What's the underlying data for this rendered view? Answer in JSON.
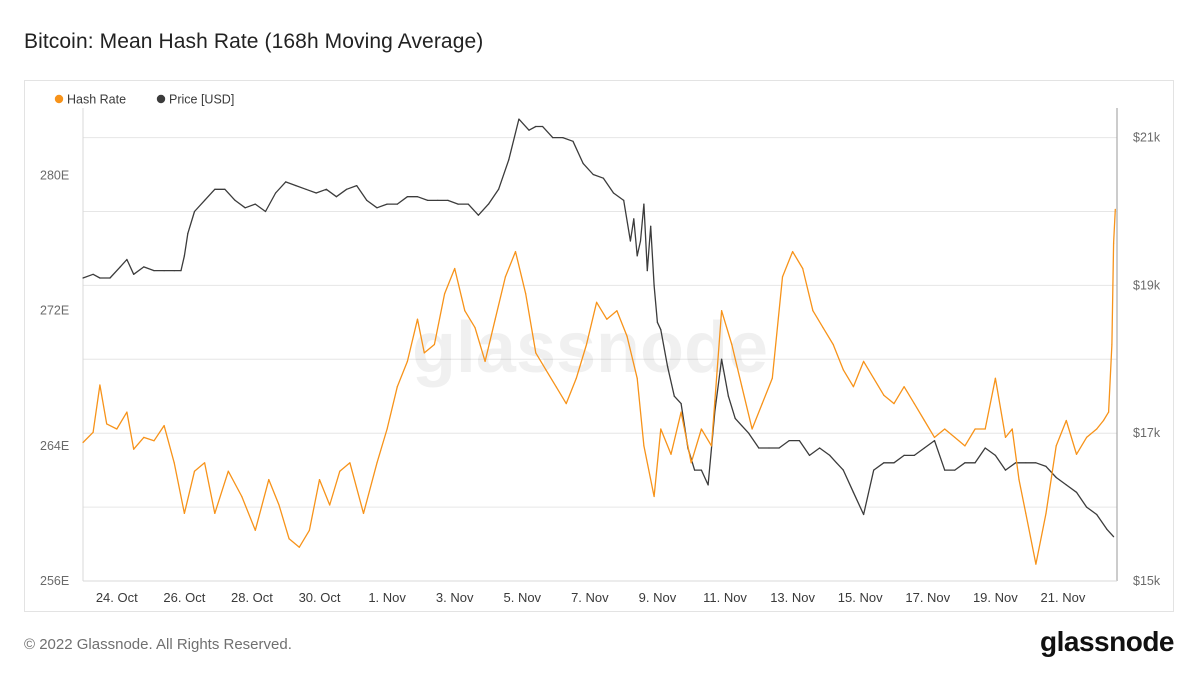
{
  "title": "Bitcoin: Mean Hash Rate (168h Moving Average)",
  "footer": {
    "copyright": "© 2022 Glassnode. All Rights Reserved.",
    "brand": "glassnode"
  },
  "colors": {
    "hash_rate": "#F7931A",
    "price": "#3c3c3c",
    "grid": "#e6e6e6",
    "watermark": "#000000"
  },
  "chart_data": {
    "type": "line",
    "title": "Bitcoin: Mean Hash Rate (168h Moving Average)",
    "watermark": "glassnode",
    "legend": {
      "placement": "top-left",
      "entries": [
        {
          "name": "Hash Rate",
          "color": "#F7931A"
        },
        {
          "name": "Price [USD]",
          "color": "#3c3c3c"
        }
      ]
    },
    "x_domain": [
      22.5,
      53.1
    ],
    "x_ticks": [
      {
        "day": 23.5,
        "label": "24. Oct"
      },
      {
        "day": 25.5,
        "label": "26. Oct"
      },
      {
        "day": 27.5,
        "label": "28. Oct"
      },
      {
        "day": 29.5,
        "label": "30. Oct"
      },
      {
        "day": 31.5,
        "label": "1. Nov"
      },
      {
        "day": 33.5,
        "label": "3. Nov"
      },
      {
        "day": 35.5,
        "label": "5. Nov"
      },
      {
        "day": 37.5,
        "label": "7. Nov"
      },
      {
        "day": 39.5,
        "label": "9. Nov"
      },
      {
        "day": 41.5,
        "label": "11. Nov"
      },
      {
        "day": 43.5,
        "label": "13. Nov"
      },
      {
        "day": 45.5,
        "label": "15. Nov"
      },
      {
        "day": 47.5,
        "label": "17. Nov"
      },
      {
        "day": 49.5,
        "label": "19. Nov"
      },
      {
        "day": 51.5,
        "label": "21. Nov"
      }
    ],
    "y_left": {
      "label": "Hash Rate",
      "range": [
        256,
        284
      ],
      "ticks": [
        {
          "value": 256,
          "label": "256E"
        },
        {
          "value": 264,
          "label": "264E"
        },
        {
          "value": 272,
          "label": "272E"
        },
        {
          "value": 280,
          "label": "280E"
        }
      ]
    },
    "y_right": {
      "label": "Price [USD]",
      "range": [
        15000,
        21400
      ],
      "ticks": [
        {
          "value": 15000,
          "label": "$15k"
        },
        {
          "value": 17000,
          "label": "$17k"
        },
        {
          "value": 19000,
          "label": "$19k"
        },
        {
          "value": 21000,
          "label": "$21k"
        }
      ]
    },
    "series": [
      {
        "name": "Hash Rate",
        "axis": "left",
        "color": "#F7931A",
        "x": [
          22.5,
          22.8,
          23.0,
          23.2,
          23.5,
          23.8,
          24.0,
          24.3,
          24.6,
          24.9,
          25.2,
          25.5,
          25.8,
          26.1,
          26.4,
          26.8,
          27.2,
          27.6,
          28.0,
          28.3,
          28.6,
          28.9,
          29.2,
          29.5,
          29.8,
          30.1,
          30.4,
          30.8,
          31.2,
          31.5,
          31.8,
          32.1,
          32.4,
          32.6,
          32.9,
          33.2,
          33.5,
          33.8,
          34.1,
          34.4,
          34.7,
          35.0,
          35.3,
          35.6,
          35.9,
          36.2,
          36.5,
          36.8,
          37.1,
          37.4,
          37.7,
          38.0,
          38.3,
          38.6,
          38.9,
          39.1,
          39.4,
          39.6,
          39.9,
          40.2,
          40.5,
          40.8,
          41.1,
          41.4,
          41.7,
          42.0,
          42.3,
          42.6,
          42.9,
          43.2,
          43.5,
          43.8,
          44.1,
          44.4,
          44.7,
          45.0,
          45.3,
          45.6,
          45.9,
          46.2,
          46.5,
          46.8,
          47.1,
          47.4,
          47.7,
          48.0,
          48.3,
          48.6,
          48.9,
          49.2,
          49.5,
          49.8,
          50.0,
          50.2,
          50.4,
          50.7,
          51.0,
          51.3,
          51.6,
          51.9,
          52.2,
          52.5,
          52.7,
          52.85,
          52.95,
          53.0,
          53.05
        ],
        "y": [
          264.2,
          264.8,
          267.6,
          265.3,
          265.0,
          266.0,
          263.8,
          264.5,
          264.3,
          265.2,
          263.0,
          260.0,
          262.5,
          263.0,
          260.0,
          262.5,
          261.0,
          259.0,
          262.0,
          260.5,
          258.5,
          258.0,
          259.0,
          262.0,
          260.5,
          262.5,
          263.0,
          260.0,
          263.0,
          265.0,
          267.5,
          269.0,
          271.5,
          269.5,
          270.0,
          273.0,
          274.5,
          272.0,
          271.0,
          269.0,
          271.5,
          274.0,
          275.5,
          273.0,
          269.5,
          268.5,
          267.5,
          266.5,
          268.0,
          270.0,
          272.5,
          271.5,
          272.0,
          270.5,
          268.0,
          264.0,
          261.0,
          265.0,
          263.5,
          266.0,
          263.0,
          265.0,
          264.0,
          272.0,
          270.0,
          267.5,
          265.0,
          266.5,
          268.0,
          274.0,
          275.5,
          274.5,
          272.0,
          271.0,
          270.0,
          268.5,
          267.5,
          269.0,
          268.0,
          267.0,
          266.5,
          267.5,
          266.5,
          265.5,
          264.5,
          265.0,
          264.5,
          264.0,
          265.0,
          265.0,
          268.0,
          264.5,
          265.0,
          262.0,
          260.0,
          257.0,
          260.0,
          264.0,
          265.5,
          263.5,
          264.5,
          265.0,
          265.5,
          266.0,
          270.0,
          276.0,
          278.0
        ]
      },
      {
        "name": "Price [USD]",
        "axis": "right",
        "color": "#3c3c3c",
        "x": [
          22.5,
          22.8,
          23.0,
          23.3,
          23.6,
          23.8,
          24.0,
          24.3,
          24.6,
          24.9,
          25.2,
          25.4,
          25.5,
          25.6,
          25.8,
          26.1,
          26.4,
          26.7,
          27.0,
          27.3,
          27.6,
          27.9,
          28.2,
          28.5,
          28.8,
          29.1,
          29.4,
          29.7,
          30.0,
          30.3,
          30.6,
          30.9,
          31.2,
          31.5,
          31.8,
          32.1,
          32.4,
          32.7,
          33.0,
          33.3,
          33.6,
          33.9,
          34.2,
          34.5,
          34.8,
          35.1,
          35.4,
          35.7,
          35.9,
          36.1,
          36.4,
          36.7,
          37.0,
          37.3,
          37.6,
          37.9,
          38.2,
          38.5,
          38.7,
          38.8,
          38.9,
          39.0,
          39.1,
          39.2,
          39.3,
          39.4,
          39.5,
          39.6,
          39.8,
          40.0,
          40.2,
          40.4,
          40.6,
          40.8,
          41.0,
          41.2,
          41.4,
          41.6,
          41.8,
          42.0,
          42.2,
          42.5,
          42.8,
          43.1,
          43.4,
          43.7,
          44.0,
          44.3,
          44.6,
          44.8,
          45.0,
          45.3,
          45.6,
          45.9,
          46.2,
          46.5,
          46.8,
          47.1,
          47.4,
          47.7,
          48.0,
          48.3,
          48.6,
          48.9,
          49.2,
          49.5,
          49.8,
          50.1,
          50.4,
          50.7,
          51.0,
          51.3,
          51.6,
          51.9,
          52.2,
          52.5,
          52.8,
          53.0
        ],
        "y": [
          19100,
          19150,
          19100,
          19100,
          19250,
          19350,
          19150,
          19250,
          19200,
          19200,
          19200,
          19200,
          19400,
          19700,
          20000,
          20150,
          20300,
          20300,
          20150,
          20050,
          20100,
          20000,
          20250,
          20400,
          20350,
          20300,
          20250,
          20300,
          20200,
          20300,
          20350,
          20150,
          20050,
          20100,
          20100,
          20200,
          20200,
          20150,
          20150,
          20150,
          20100,
          20100,
          19950,
          20100,
          20300,
          20700,
          21250,
          21100,
          21150,
          21150,
          21000,
          21000,
          20950,
          20650,
          20500,
          20450,
          20250,
          20150,
          19600,
          19900,
          19400,
          19600,
          20100,
          19200,
          19800,
          19000,
          18500,
          18400,
          17900,
          17500,
          17400,
          16800,
          16500,
          16500,
          16300,
          17300,
          18000,
          17500,
          17200,
          17100,
          17000,
          16800,
          16800,
          16800,
          16900,
          16900,
          16700,
          16800,
          16700,
          16600,
          16500,
          16200,
          15900,
          16500,
          16600,
          16600,
          16700,
          16700,
          16800,
          16900,
          16500,
          16500,
          16600,
          16600,
          16800,
          16700,
          16500,
          16600,
          16600,
          16600,
          16550,
          16400,
          16300,
          16200,
          16000,
          15900,
          15700,
          15600
        ]
      }
    ]
  }
}
